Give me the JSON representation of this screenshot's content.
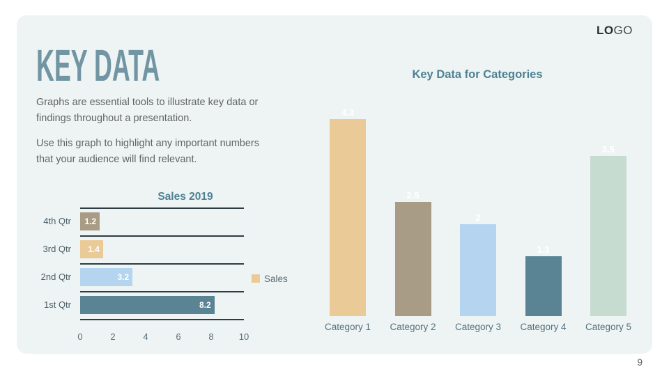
{
  "page_number": "9",
  "logo": {
    "bold": "LO",
    "light": "GO"
  },
  "header": {
    "title": "KEY DATA"
  },
  "intro": {
    "paragraph1": "Graphs are essential tools to illustrate key data or findings throughout a presentation.",
    "paragraph2": "Use this graph to highlight any important numbers that your audience will find relevant."
  },
  "colors": {
    "page_background": "#ffffff",
    "slide_background": "#edf4f3",
    "headline_teal": "#7195a3",
    "chart_title_teal": "#4e8094",
    "body_text_gray": "#636363",
    "axis_text": "#4c5d66",
    "tan": "#eaca96",
    "taupe": "#a99c86",
    "light_blue": "#b4d4ef",
    "dark_teal": "#5a8394",
    "mint": "#c7dcd0"
  },
  "chart_data": [
    {
      "type": "bar",
      "orientation": "horizontal",
      "title": "Sales 2019",
      "categories": [
        "4th Qtr",
        "3rd Qtr",
        "2nd Qtr",
        "1st Qtr"
      ],
      "values": [
        1.2,
        1.4,
        3.2,
        8.2
      ],
      "value_labels": [
        "1.2",
        "1.4",
        "3.2",
        "8.2"
      ],
      "bar_colors": [
        "#a99c86",
        "#eaca96",
        "#b4d4ef",
        "#5a8394"
      ],
      "xlim": [
        0,
        10
      ],
      "x_ticks": [
        0,
        2,
        4,
        6,
        8,
        10
      ],
      "legend": {
        "label": "Sales",
        "swatch_color": "#eaca96",
        "position": "right"
      },
      "data_label_style": "inside-end white bold",
      "grid": "horizontal category separator lines"
    },
    {
      "type": "bar",
      "orientation": "vertical",
      "title": "Key Data for Categories",
      "categories": [
        "Category 1",
        "Category 2",
        "Category 3",
        "Category 4",
        "Category 5"
      ],
      "values": [
        4.3,
        2.5,
        2,
        1.3,
        3.5
      ],
      "value_labels": [
        "4.3",
        "2.5",
        "2",
        "1.3",
        "3.5"
      ],
      "bar_colors": [
        "#eaca96",
        "#a99c86",
        "#b4d4ef",
        "#5a8394",
        "#c7dcd0"
      ],
      "ylim": [
        0,
        4.5
      ],
      "data_label_style": "above bar, white bold",
      "grid": "none",
      "legend_position": "none"
    }
  ]
}
